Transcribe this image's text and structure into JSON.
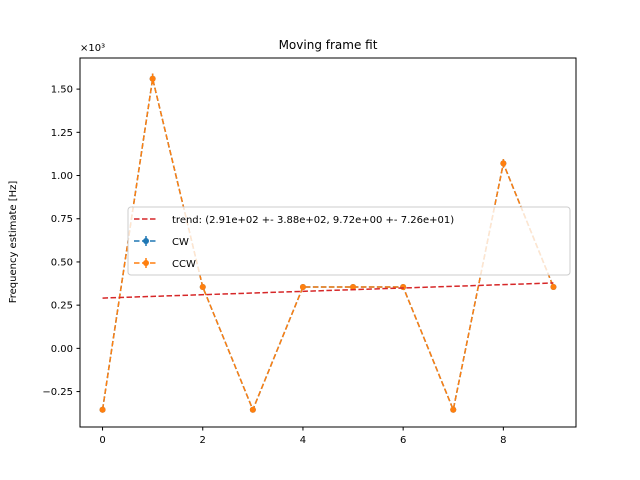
{
  "chart_data": {
    "type": "line",
    "title": "Moving frame fit",
    "xlabel": "",
    "ylabel": "Frequency estimate [Hz]",
    "y_scale_label": "×10³",
    "xlim": [
      -0.45,
      9.45
    ],
    "ylim": [
      -0.455,
      1.68
    ],
    "y_multiplier": 1000,
    "grid": false,
    "legend_position": "center-right",
    "x_ticks": [
      0,
      2,
      4,
      6,
      8
    ],
    "x_tick_labels": [
      "0",
      "2",
      "4",
      "6",
      "8"
    ],
    "y_ticks": [
      -0.25,
      0.0,
      0.25,
      0.5,
      0.75,
      1.0,
      1.25,
      1.5
    ],
    "y_tick_labels": [
      "−0.25",
      "0.00",
      "0.25",
      "0.50",
      "0.75",
      "1.00",
      "1.25",
      "1.50"
    ],
    "x": [
      0,
      1,
      2,
      3,
      4,
      5,
      6,
      7,
      8,
      9
    ],
    "trend": {
      "name": "trend: (2.91e+02 +- 3.88e+02, 9.72e+00 +- 7.26e+01)",
      "color": "#d62728",
      "intercept": 0.291,
      "slope": 0.00972
    },
    "series": [
      {
        "name": "CW",
        "color": "#1f77b4",
        "values": [
          -0.355,
          1.56,
          0.355,
          -0.355,
          0.355,
          0.355,
          0.355,
          -0.355,
          1.07,
          0.355
        ],
        "errors": [
          0.012,
          0.03,
          0.012,
          0.012,
          0.012,
          0.012,
          0.012,
          0.012,
          0.025,
          0.012
        ]
      },
      {
        "name": "CCW",
        "color": "#ff7f0e",
        "values": [
          -0.355,
          1.56,
          0.355,
          -0.355,
          0.355,
          0.355,
          0.355,
          -0.355,
          1.07,
          0.355
        ],
        "errors": [
          0.012,
          0.03,
          0.012,
          0.012,
          0.012,
          0.012,
          0.012,
          0.012,
          0.025,
          0.012
        ]
      }
    ]
  }
}
